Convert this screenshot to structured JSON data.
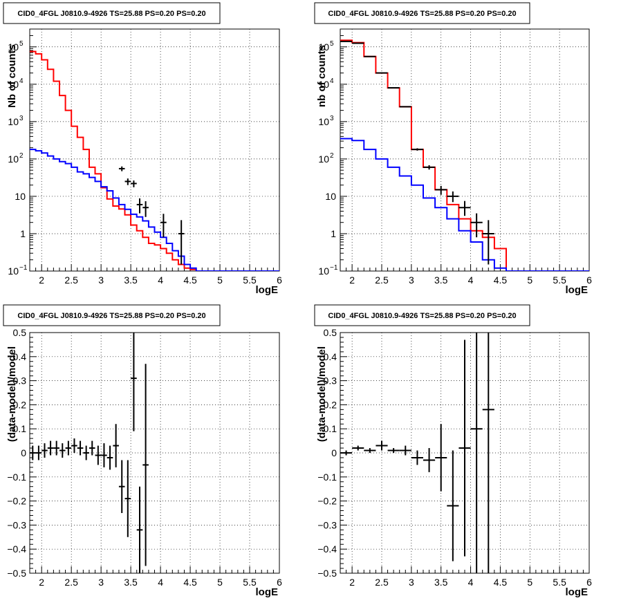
{
  "chart_data": [
    {
      "type": "line",
      "title": "CID0_4FGL J0810.9-4926 TS=25.88 PS=0.20 PS=0.20",
      "xlabel": "logE",
      "ylabel": "Nb of counts",
      "log_y": true,
      "xlim": [
        1.8,
        6.0
      ],
      "ylim": [
        0.1,
        300000
      ],
      "grid": true,
      "x_ticks": [
        "2",
        "2.5",
        "3",
        "3.5",
        "4",
        "4.5",
        "5",
        "5.5",
        "6"
      ],
      "y_ticks": [
        {
          "value": 0.1,
          "base": "10",
          "exp": "−1"
        },
        {
          "value": 1,
          "base": "1",
          "exp": ""
        },
        {
          "value": 10,
          "base": "10",
          "exp": ""
        },
        {
          "value": 100,
          "base": "10",
          "exp": "2"
        },
        {
          "value": 1000,
          "base": "10",
          "exp": "3"
        },
        {
          "value": 10000,
          "base": "10",
          "exp": "4"
        },
        {
          "value": 100000,
          "base": "10",
          "exp": "5"
        }
      ],
      "series": [
        {
          "kind": "step",
          "color": "#ff0000",
          "bin_width": 0.1,
          "x": [
            1.8,
            1.9,
            2.0,
            2.1,
            2.2,
            2.3,
            2.4,
            2.5,
            2.6,
            2.7,
            2.8,
            2.9,
            3.0,
            3.1,
            3.2,
            3.3,
            3.4,
            3.5,
            3.6,
            3.7,
            3.8,
            3.9,
            4.0,
            4.1,
            4.2,
            4.3,
            4.4,
            4.5,
            4.6
          ],
          "values": [
            75000,
            65000,
            45000,
            25000,
            12000,
            5000,
            2000,
            750,
            380,
            180,
            60,
            40,
            17,
            8.5,
            5.5,
            4.6,
            3.2,
            1.7,
            1.2,
            0.8,
            0.55,
            0.5,
            0.4,
            0.3,
            0.2,
            0.15,
            0.12,
            0.11,
            0.1
          ]
        },
        {
          "kind": "step",
          "color": "#0000ff",
          "bin_width": 0.1,
          "x": [
            1.8,
            1.9,
            2.0,
            2.1,
            2.2,
            2.3,
            2.4,
            2.5,
            2.6,
            2.7,
            2.8,
            2.9,
            3.0,
            3.1,
            3.2,
            3.3,
            3.4,
            3.5,
            3.6,
            3.7,
            3.8,
            3.9,
            4.0,
            4.1,
            4.2,
            4.3,
            4.4,
            4.5,
            4.6,
            4.7
          ],
          "values": [
            180,
            165,
            145,
            120,
            100,
            85,
            75,
            60,
            45,
            40,
            32,
            25,
            18,
            14,
            9,
            6,
            4.5,
            3.3,
            2.8,
            2.2,
            1.5,
            1.1,
            0.8,
            0.55,
            0.35,
            0.25,
            0.15,
            0.12,
            0.1,
            0.1
          ]
        },
        {
          "kind": "errorbar",
          "color": "#000000",
          "half_width": 0.05,
          "x": [
            3.35,
            3.45,
            3.55,
            3.65,
            3.75,
            4.05,
            4.35
          ],
          "values": [
            55,
            25,
            22,
            6,
            5,
            2,
            1
          ],
          "err_lo": [
            8,
            5,
            4.5,
            2.5,
            2.2,
            1.2,
            0.85
          ],
          "err_hi": [
            8,
            5,
            4.5,
            2.8,
            2.4,
            1.4,
            1.3
          ]
        }
      ]
    },
    {
      "type": "line",
      "title": "CID0_4FGL J0810.9-4926 TS=25.88 PS=0.20 PS=0.20",
      "xlabel": "logE",
      "ylabel": "nb of counts",
      "log_y": true,
      "xlim": [
        1.8,
        6.0
      ],
      "ylim": [
        0.1,
        300000
      ],
      "grid": true,
      "x_ticks": [
        "2",
        "2.5",
        "3",
        "3.5",
        "4",
        "4.5",
        "5",
        "5.5",
        "6"
      ],
      "y_ticks": [
        {
          "value": 0.1,
          "base": "10",
          "exp": "−1"
        },
        {
          "value": 1,
          "base": "1",
          "exp": ""
        },
        {
          "value": 10,
          "base": "10",
          "exp": ""
        },
        {
          "value": 100,
          "base": "10",
          "exp": "2"
        },
        {
          "value": 1000,
          "base": "10",
          "exp": "3"
        },
        {
          "value": 10000,
          "base": "10",
          "exp": "4"
        },
        {
          "value": 100000,
          "base": "10",
          "exp": "5"
        }
      ],
      "series": [
        {
          "kind": "step",
          "color": "#ff0000",
          "bin_width": 0.2,
          "x": [
            1.8,
            2.0,
            2.2,
            2.4,
            2.6,
            2.8,
            3.0,
            3.2,
            3.4,
            3.6,
            3.8,
            4.0,
            4.2,
            4.4,
            4.6
          ],
          "values": [
            150000,
            130000,
            55000,
            20000,
            8000,
            2500,
            180,
            60,
            15,
            6,
            2.5,
            1.2,
            0.8,
            0.4,
            0.1
          ]
        },
        {
          "kind": "step",
          "color": "#0000ff",
          "bin_width": 0.2,
          "x": [
            1.8,
            2.0,
            2.2,
            2.4,
            2.6,
            2.8,
            3.0,
            3.2,
            3.4,
            3.6,
            3.8,
            4.0,
            4.2,
            4.4,
            4.6,
            4.8
          ],
          "values": [
            350,
            310,
            180,
            100,
            60,
            35,
            20,
            9,
            5,
            2.5,
            1.2,
            0.6,
            0.2,
            0.12,
            0.1,
            0.1
          ]
        },
        {
          "kind": "errorbar",
          "color": "#000000",
          "half_width": 0.1,
          "x": [
            1.9,
            2.1,
            2.3,
            2.5,
            2.7,
            2.9,
            3.1,
            3.3,
            3.5,
            3.7,
            3.9,
            4.1,
            4.3
          ],
          "values": [
            140000,
            125000,
            55000,
            20000,
            8000,
            2500,
            180,
            60,
            15,
            10,
            5,
            2,
            1
          ],
          "err_lo": [
            400,
            350,
            230,
            140,
            90,
            50,
            13,
            8,
            4,
            3,
            2,
            1.2,
            0.85
          ],
          "err_hi": [
            400,
            350,
            230,
            140,
            90,
            50,
            13,
            8,
            4,
            3.5,
            2.5,
            1.5,
            1.3
          ]
        }
      ]
    },
    {
      "type": "scatter",
      "title": "CID0_4FGL J0810.9-4926 TS=25.88 PS=0.20 PS=0.20",
      "xlabel": "logE",
      "ylabel": "(data-model)/model",
      "log_y": false,
      "xlim": [
        1.8,
        6.0
      ],
      "ylim": [
        -0.5,
        0.5
      ],
      "grid": true,
      "x_ticks": [
        "2",
        "2.5",
        "3",
        "3.5",
        "4",
        "4.5",
        "5",
        "5.5",
        "6"
      ],
      "y_ticks": [
        "−0.5",
        "−0.4",
        "−0.3",
        "−0.2",
        "−0.1",
        "0",
        "0.1",
        "0.2",
        "0.3",
        "0.4",
        "0.5"
      ],
      "y_tick_values": [
        -0.5,
        -0.4,
        -0.3,
        -0.2,
        -0.1,
        0,
        0.1,
        0.2,
        0.3,
        0.4,
        0.5
      ],
      "series": [
        {
          "kind": "errorbar",
          "color": "#000000",
          "half_width": 0.05,
          "x": [
            1.85,
            1.95,
            2.05,
            2.15,
            2.25,
            2.35,
            2.45,
            2.55,
            2.65,
            2.75,
            2.85,
            2.95,
            3.05,
            3.15,
            3.25,
            3.35,
            3.45,
            3.55,
            3.65,
            3.75
          ],
          "values": [
            0.0,
            0.0,
            0.01,
            0.02,
            0.02,
            0.01,
            0.02,
            0.03,
            0.02,
            0.0,
            0.02,
            -0.01,
            -0.01,
            -0.02,
            0.03,
            -0.14,
            -0.19,
            0.31,
            -0.32,
            -0.05
          ],
          "err": [
            0.03,
            0.03,
            0.03,
            0.03,
            0.03,
            0.03,
            0.03,
            0.03,
            0.03,
            0.03,
            0.03,
            0.04,
            0.05,
            0.05,
            0.09,
            0.11,
            0.16,
            0.22,
            0.18,
            0.42
          ]
        }
      ]
    },
    {
      "type": "scatter",
      "title": "CID0_4FGL J0810.9-4926 TS=25.88 PS=0.20 PS=0.20",
      "xlabel": "logE",
      "ylabel": "(data-model)/model",
      "log_y": false,
      "xlim": [
        1.8,
        6.0
      ],
      "ylim": [
        -0.5,
        0.5
      ],
      "grid": true,
      "x_ticks": [
        "2",
        "2.5",
        "3",
        "3.5",
        "4",
        "4.5",
        "5",
        "5.5",
        "6"
      ],
      "y_ticks": [
        "−0.5",
        "−0.4",
        "−0.3",
        "−0.2",
        "−0.1",
        "0",
        "0.1",
        "0.2",
        "0.3",
        "0.4",
        "0.5"
      ],
      "y_tick_values": [
        -0.5,
        -0.4,
        -0.3,
        -0.2,
        -0.1,
        0,
        0.1,
        0.2,
        0.3,
        0.4,
        0.5
      ],
      "series": [
        {
          "kind": "errorbar",
          "color": "#000000",
          "half_width": 0.1,
          "x": [
            1.9,
            2.1,
            2.3,
            2.5,
            2.7,
            2.9,
            3.1,
            3.3,
            3.5,
            3.7,
            3.9,
            4.1,
            4.3
          ],
          "values": [
            0.0,
            0.02,
            0.01,
            0.03,
            0.01,
            0.01,
            -0.02,
            -0.03,
            -0.02,
            -0.22,
            0.02,
            0.1,
            0.18
          ],
          "err": [
            0.01,
            0.01,
            0.01,
            0.02,
            0.01,
            0.02,
            0.03,
            0.05,
            0.14,
            0.23,
            0.45,
            0.6,
            0.8
          ]
        }
      ]
    }
  ]
}
